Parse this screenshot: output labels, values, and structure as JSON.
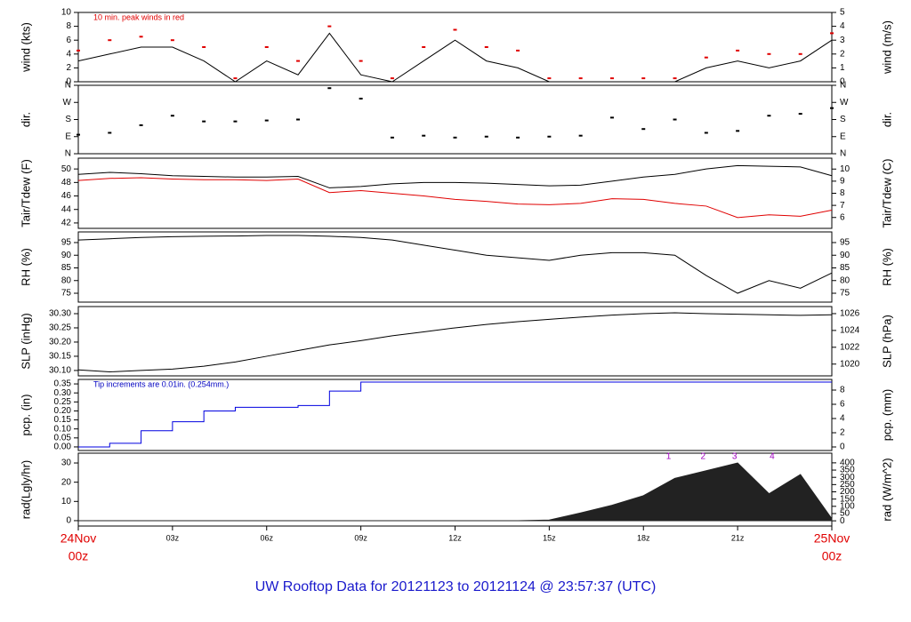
{
  "x_axis": {
    "xlim": [
      0,
      24
    ],
    "ticks": [
      {
        "value": 0,
        "label": [
          "24Nov",
          "00z"
        ],
        "color": "#e00000"
      },
      {
        "value": 3,
        "label": "03z"
      },
      {
        "value": 6,
        "label": "06z"
      },
      {
        "value": 9,
        "label": "09z"
      },
      {
        "value": 12,
        "label": "12z"
      },
      {
        "value": 15,
        "label": "15z"
      },
      {
        "value": 18,
        "label": "18z"
      },
      {
        "value": 21,
        "label": "21z"
      },
      {
        "value": 24,
        "label": [
          "25Nov",
          "00z"
        ],
        "color": "#e00000"
      }
    ]
  },
  "footer": "UW Rooftop Data for 20121123  to  20121124 @ 23:57:37  (UTC)",
  "chart_data": [
    {
      "type": "line",
      "ylabel": "wind (kts)",
      "y2label": "wind (m/s)",
      "annotation": "10 min. peak winds in red",
      "annotation_color": "#e00000",
      "ylim": [
        0,
        10
      ],
      "yticks": [
        0,
        2,
        4,
        6,
        8,
        10
      ],
      "y2lim": [
        0,
        5
      ],
      "y2ticks": [
        0,
        1,
        2,
        3,
        4,
        5
      ],
      "x": [
        0,
        1,
        2,
        3,
        4,
        5,
        6,
        7,
        8,
        9,
        10,
        11,
        12,
        13,
        14,
        15,
        16,
        17,
        18,
        19,
        20,
        21,
        22,
        23,
        24
      ],
      "series": [
        {
          "name": "wind",
          "color": "#000000",
          "values": [
            3,
            4,
            5,
            5,
            3,
            0,
            3,
            1,
            7,
            1,
            0,
            3,
            6,
            3,
            2,
            0,
            0,
            0,
            0,
            0,
            2,
            3,
            2,
            3,
            6
          ]
        },
        {
          "name": "peak",
          "color": "#e00000",
          "marker": "dash",
          "values": [
            4.5,
            6,
            6.5,
            6,
            5,
            0.5,
            5,
            3,
            8,
            3,
            0.5,
            5,
            7.5,
            5,
            4.5,
            0.5,
            0.5,
            0.5,
            0.5,
            0.5,
            3.5,
            4.5,
            4,
            4,
            7
          ]
        }
      ]
    },
    {
      "type": "scatter",
      "ylabel": "dir.",
      "y2label": "dir.",
      "ylim": [
        0,
        360
      ],
      "yticks": [
        {
          "value": 0,
          "label": "N"
        },
        {
          "value": 90,
          "label": "E"
        },
        {
          "value": 180,
          "label": "S"
        },
        {
          "value": 270,
          "label": "W"
        },
        {
          "value": 360,
          "label": "N"
        }
      ],
      "y2lim": [
        0,
        360
      ],
      "y2ticks": [
        {
          "value": 0,
          "label": "N"
        },
        {
          "value": 90,
          "label": "E"
        },
        {
          "value": 180,
          "label": "S"
        },
        {
          "value": 270,
          "label": "W"
        },
        {
          "value": 360,
          "label": "N"
        }
      ],
      "x": [
        0,
        1,
        2,
        3,
        4,
        5,
        6,
        7,
        8,
        9,
        10,
        11,
        12,
        13,
        14,
        15,
        16,
        17,
        18,
        19,
        20,
        21,
        22,
        23,
        24
      ],
      "series": [
        {
          "name": "dir",
          "color": "#000000",
          "values": [
            100,
            110,
            150,
            200,
            170,
            170,
            175,
            180,
            345,
            290,
            85,
            95,
            85,
            90,
            85,
            90,
            95,
            190,
            130,
            180,
            110,
            120,
            200,
            210,
            240
          ]
        }
      ]
    },
    {
      "type": "line",
      "ylabel": "Tair/Tdew (F)",
      "y2label": "Tair/Tdew (C)",
      "ylim": [
        41.2,
        51.6
      ],
      "yticks": [
        42,
        44,
        46,
        48,
        50
      ],
      "y2lim": [
        5.1,
        10.9
      ],
      "y2ticks": [
        6,
        7,
        8,
        9,
        10
      ],
      "x": [
        0,
        1,
        2,
        3,
        4,
        5,
        6,
        7,
        8,
        9,
        10,
        11,
        12,
        13,
        14,
        15,
        16,
        17,
        18,
        19,
        20,
        21,
        22,
        23,
        24
      ],
      "series": [
        {
          "name": "Tair",
          "color": "#000000",
          "values": [
            49.2,
            49.5,
            49.3,
            49.0,
            48.9,
            48.8,
            48.8,
            48.9,
            47.2,
            47.4,
            47.8,
            48.0,
            48.0,
            47.9,
            47.7,
            47.5,
            47.6,
            48.2,
            48.8,
            49.2,
            50.0,
            50.5,
            50.4,
            50.3,
            49.0
          ]
        },
        {
          "name": "Tdew",
          "color": "#e00000",
          "values": [
            48.3,
            48.6,
            48.7,
            48.5,
            48.4,
            48.4,
            48.3,
            48.5,
            46.5,
            46.8,
            46.4,
            46.0,
            45.5,
            45.2,
            44.8,
            44.7,
            44.9,
            45.6,
            45.5,
            44.9,
            44.5,
            42.8,
            43.2,
            43.0,
            43.9
          ]
        }
      ]
    },
    {
      "type": "line",
      "ylabel": "RH (%)",
      "y2label": "RH (%)",
      "ylim": [
        71.5,
        99.2
      ],
      "yticks": [
        75,
        80,
        85,
        90,
        95
      ],
      "y2lim": [
        71.5,
        99.2
      ],
      "y2ticks": [
        75,
        80,
        85,
        90,
        95
      ],
      "x": [
        0,
        1,
        2,
        3,
        4,
        5,
        6,
        7,
        8,
        9,
        10,
        11,
        12,
        13,
        14,
        15,
        16,
        17,
        18,
        19,
        20,
        21,
        22,
        23,
        24
      ],
      "series": [
        {
          "name": "RH",
          "color": "#000000",
          "values": [
            96,
            96.5,
            97,
            97.3,
            97.5,
            97.6,
            97.8,
            97.8,
            97.5,
            97,
            96,
            94,
            92,
            90,
            89,
            88,
            90,
            91,
            91,
            90,
            82,
            75,
            80,
            77,
            83
          ]
        }
      ]
    },
    {
      "type": "line",
      "ylabel": "SLP (inHg)",
      "y2label": "SLP (hPa)",
      "ylim": [
        30.081,
        30.325
      ],
      "yticks": [
        {
          "value": 30.1,
          "label": "30.10"
        },
        {
          "value": 30.15,
          "label": "30.15"
        },
        {
          "value": 30.2,
          "label": "30.20"
        },
        {
          "value": 30.25,
          "label": "30.25"
        },
        {
          "value": 30.3,
          "label": "30.30"
        }
      ],
      "y2lim": [
        1018.6,
        1026.84
      ],
      "y2ticks": [
        1020,
        1022,
        1024,
        1026
      ],
      "x": [
        0,
        1,
        2,
        3,
        4,
        5,
        6,
        7,
        8,
        9,
        10,
        11,
        12,
        13,
        14,
        15,
        16,
        17,
        18,
        19,
        20,
        21,
        22,
        23,
        24
      ],
      "series": [
        {
          "name": "SLP",
          "color": "#000000",
          "values": [
            30.102,
            30.095,
            30.1,
            30.105,
            30.115,
            30.13,
            30.15,
            30.17,
            30.19,
            30.205,
            30.222,
            30.236,
            30.25,
            30.262,
            30.272,
            30.28,
            30.288,
            30.295,
            30.3,
            30.303,
            30.3,
            30.298,
            30.296,
            30.294,
            30.296
          ]
        }
      ]
    },
    {
      "type": "step",
      "ylabel": "pcp. (in)",
      "y2label": "pcp. (mm)",
      "annotation": "Tip increments are 0.01in. (0.254mm.)",
      "annotation_color": "#0000c0",
      "ylim": [
        -0.02,
        0.375
      ],
      "yticks": [
        {
          "value": 0,
          "label": "0.00"
        },
        {
          "value": 0.05,
          "label": "0.05"
        },
        {
          "value": 0.1,
          "label": "0.10"
        },
        {
          "value": 0.15,
          "label": "0.15"
        },
        {
          "value": 0.2,
          "label": "0.20"
        },
        {
          "value": 0.25,
          "label": "0.25"
        },
        {
          "value": 0.3,
          "label": "0.30"
        },
        {
          "value": 0.35,
          "label": "0.35"
        }
      ],
      "y2lim": [
        -0.5,
        9.5
      ],
      "y2ticks": [
        0,
        2,
        4,
        6,
        8
      ],
      "x": [
        0,
        1,
        2,
        3,
        4,
        5,
        6,
        7,
        8,
        9,
        10,
        11,
        12,
        13,
        14,
        15,
        16,
        17,
        18,
        19,
        20,
        21,
        22,
        23,
        24
      ],
      "series": [
        {
          "name": "pcp",
          "color": "#0000e0",
          "values": [
            0,
            0.02,
            0.09,
            0.14,
            0.2,
            0.22,
            0.22,
            0.23,
            0.31,
            0.36,
            0.36,
            0.36,
            0.36,
            0.36,
            0.36,
            0.36,
            0.36,
            0.36,
            0.36,
            0.36,
            0.36,
            0.36,
            0.36,
            0.36,
            0.36
          ]
        }
      ]
    },
    {
      "type": "area",
      "ylabel": "rad(Lgly/hr)",
      "y2label": "rad (W/m^2)",
      "ylim": [
        -2.8,
        35.1
      ],
      "yticks": [
        0,
        10,
        20,
        30
      ],
      "y2lim": [
        -36,
        466.7
      ],
      "y2ticks": [
        0,
        50,
        100,
        150,
        200,
        250,
        300,
        350,
        400
      ],
      "marks": [
        {
          "x": 18.8,
          "label": "1"
        },
        {
          "x": 19.9,
          "label": "2"
        },
        {
          "x": 20.9,
          "label": "3"
        },
        {
          "x": 22.1,
          "label": "4"
        }
      ],
      "marks_color": "#a000c0",
      "x": [
        0,
        1,
        2,
        3,
        4,
        5,
        6,
        7,
        8,
        9,
        10,
        11,
        12,
        13,
        14,
        15,
        16,
        17,
        18,
        19,
        20,
        21,
        22,
        23,
        24
      ],
      "series": [
        {
          "name": "rad",
          "color": "#222222",
          "values": [
            0,
            0,
            0,
            0,
            0,
            0,
            0,
            0,
            0,
            0,
            0,
            0,
            0,
            0,
            0,
            0.3,
            4,
            8,
            13,
            22,
            26,
            30,
            14,
            24,
            1
          ]
        }
      ]
    }
  ]
}
